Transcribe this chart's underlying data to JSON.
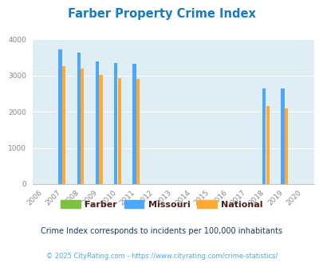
{
  "title": "Farber Property Crime Index",
  "years": [
    2006,
    2007,
    2008,
    2009,
    2010,
    2011,
    2012,
    2013,
    2014,
    2015,
    2016,
    2017,
    2018,
    2019,
    2020
  ],
  "farber": [
    null,
    null,
    null,
    null,
    null,
    null,
    null,
    null,
    null,
    null,
    null,
    null,
    null,
    null,
    null
  ],
  "missouri": [
    null,
    3720,
    3640,
    3400,
    3360,
    3330,
    null,
    null,
    null,
    null,
    null,
    null,
    2640,
    2640,
    null
  ],
  "national": [
    null,
    3270,
    3190,
    3030,
    2940,
    2900,
    null,
    null,
    null,
    null,
    null,
    null,
    2150,
    2090,
    null
  ],
  "farber_color": "#7dc242",
  "missouri_color": "#4da6ff",
  "national_color": "#ffaa33",
  "bg_color": "#deeef4",
  "fig_bg_color": "#ffffff",
  "ylim": [
    0,
    4000
  ],
  "yticks": [
    0,
    1000,
    2000,
    3000,
    4000
  ],
  "note": "Crime Index corresponds to incidents per 100,000 inhabitants",
  "footer": "© 2025 CityRating.com - https://www.cityrating.com/crime-statistics/",
  "title_color": "#1a7abf",
  "note_color": "#1a3a5c",
  "footer_color": "#4da6ff",
  "legend_text_color": "#4a2020",
  "tick_color": "#888888",
  "grid_color": "#ffffff",
  "bar_width": 0.38
}
